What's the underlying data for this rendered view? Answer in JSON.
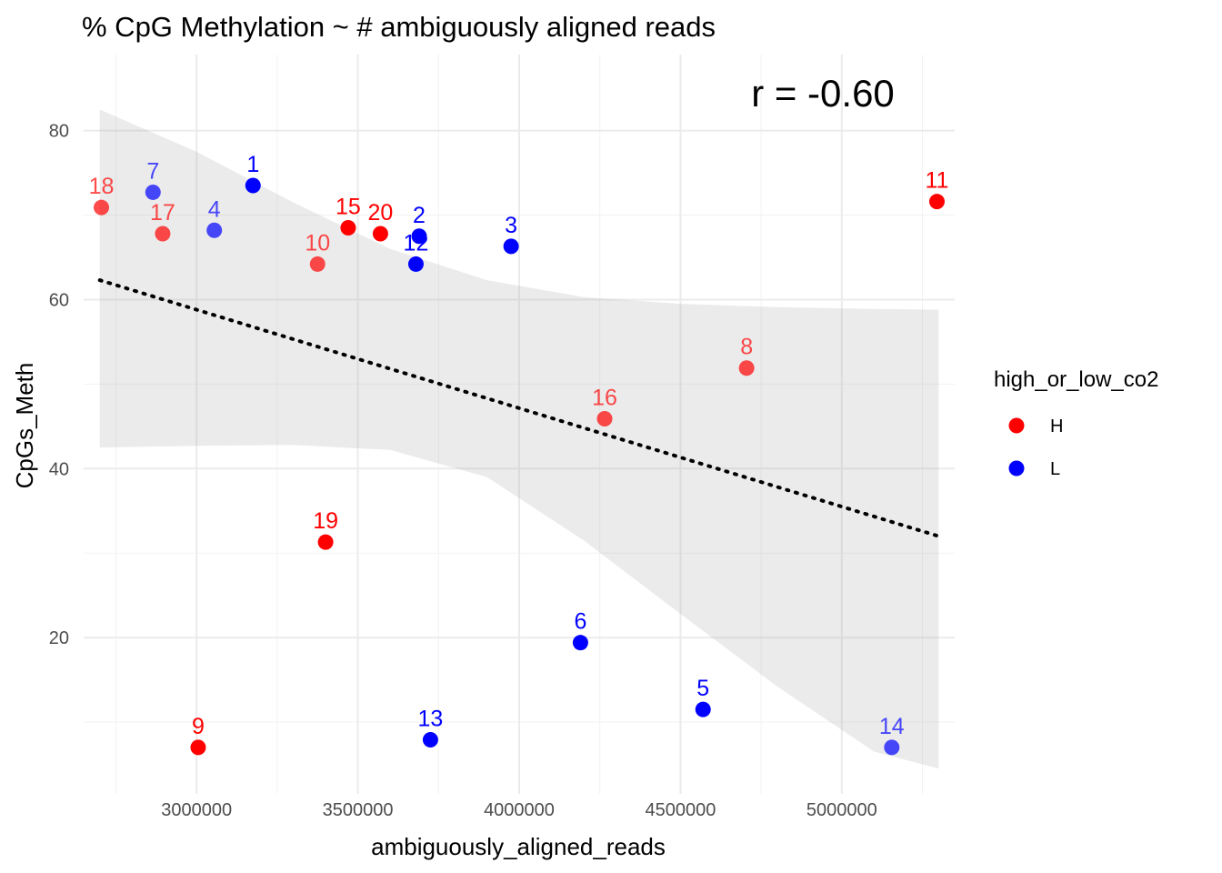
{
  "chart_data": {
    "type": "scatter",
    "title": "% CpG Methylation ~ # ambiguously aligned reads",
    "xlabel": "ambiguously_aligned_reads",
    "ylabel": "CpGs_Meth",
    "xlim": [
      2650000,
      5350000
    ],
    "ylim": [
      1.5,
      89
    ],
    "x_ticks": [
      3000000,
      3500000,
      4000000,
      4500000,
      5000000
    ],
    "x_tick_labels": [
      "3000000",
      "3500000",
      "4000000",
      "4500000",
      "5000000"
    ],
    "y_ticks": [
      20,
      40,
      60,
      80
    ],
    "y_tick_labels": [
      "20",
      "40",
      "60",
      "80"
    ],
    "grid": true,
    "legend": {
      "title": "high_or_low_co2",
      "position": "right",
      "entries": [
        {
          "label": "H",
          "color": "#ff0000"
        },
        {
          "label": "L",
          "color": "#0000ff"
        }
      ]
    },
    "annotation": "r = -0.60",
    "trend_line": {
      "style": "dotted",
      "x": [
        2700000,
        5300000
      ],
      "y": [
        62.3,
        32.0
      ]
    },
    "confidence_band": {
      "x": [
        2700000,
        3000000,
        3300000,
        3600000,
        3900000,
        4200000,
        4500000,
        4800000,
        5100000,
        5300000
      ],
      "upper": [
        82.5,
        77.5,
        71.5,
        66.0,
        62.3,
        60.3,
        59.5,
        59.1,
        58.9,
        58.8
      ],
      "lower": [
        42.5,
        42.7,
        42.8,
        42.2,
        39.0,
        31.5,
        22.8,
        14.2,
        6.5,
        4.5
      ]
    },
    "points": [
      {
        "label": "1",
        "x": 3175000,
        "y": 73.5,
        "group": "L",
        "alpha": 1.0
      },
      {
        "label": "2",
        "x": 3690000,
        "y": 67.5,
        "group": "L",
        "alpha": 1.0
      },
      {
        "label": "3",
        "x": 3975000,
        "y": 66.3,
        "group": "L",
        "alpha": 1.0
      },
      {
        "label": "4",
        "x": 3055000,
        "y": 68.2,
        "group": "L",
        "alpha": 0.7
      },
      {
        "label": "5",
        "x": 4570000,
        "y": 11.5,
        "group": "L",
        "alpha": 1.0
      },
      {
        "label": "6",
        "x": 4190000,
        "y": 19.4,
        "group": "L",
        "alpha": 1.0
      },
      {
        "label": "7",
        "x": 2865000,
        "y": 72.7,
        "group": "L",
        "alpha": 0.7
      },
      {
        "label": "8",
        "x": 4705000,
        "y": 51.9,
        "group": "H",
        "alpha": 0.7
      },
      {
        "label": "9",
        "x": 3005000,
        "y": 7.0,
        "group": "H",
        "alpha": 1.0
      },
      {
        "label": "10",
        "x": 3375000,
        "y": 64.2,
        "group": "H",
        "alpha": 0.7
      },
      {
        "label": "11",
        "x": 5295000,
        "y": 71.6,
        "group": "H",
        "alpha": 1.0
      },
      {
        "label": "12",
        "x": 3680000,
        "y": 64.2,
        "group": "L",
        "alpha": 1.0
      },
      {
        "label": "13",
        "x": 3725000,
        "y": 7.9,
        "group": "L",
        "alpha": 1.0
      },
      {
        "label": "14",
        "x": 5155000,
        "y": 7.0,
        "group": "L",
        "alpha": 0.7
      },
      {
        "label": "15",
        "x": 3470000,
        "y": 68.5,
        "group": "H",
        "alpha": 1.0
      },
      {
        "label": "16",
        "x": 4265000,
        "y": 45.9,
        "group": "H",
        "alpha": 0.7
      },
      {
        "label": "17",
        "x": 2895000,
        "y": 67.8,
        "group": "H",
        "alpha": 0.7
      },
      {
        "label": "18",
        "x": 2705000,
        "y": 70.9,
        "group": "H",
        "alpha": 0.7
      },
      {
        "label": "19",
        "x": 3400000,
        "y": 31.3,
        "group": "H",
        "alpha": 1.0
      },
      {
        "label": "20",
        "x": 3570000,
        "y": 67.8,
        "group": "H",
        "alpha": 1.0
      }
    ]
  }
}
